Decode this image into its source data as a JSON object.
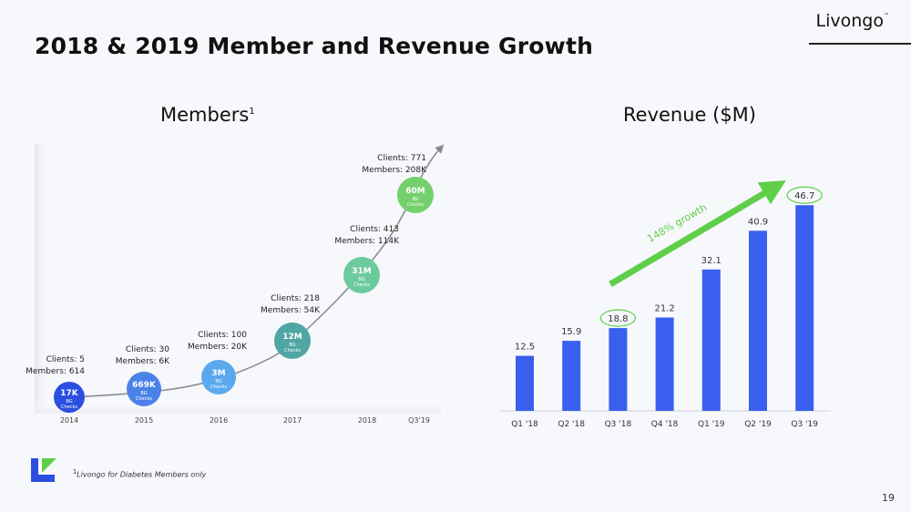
{
  "slide": {
    "title": "2018 & 2019 Member and Revenue Growth",
    "brand": "Livongo",
    "brand_tm": "™",
    "footnote_marker": "1",
    "footnote_text": "Livongo for Diabetes Members only",
    "page_number": "19",
    "logo_icon": "livongo-logo-icon"
  },
  "colors": {
    "revenue_bar": "#3a5fef",
    "growth_arrow": "#5fcf4a",
    "highlight_ellipse": "#5fcf4a",
    "members_curve": "#8c8c8c",
    "bubble_2014": "#2b4fe0",
    "bubble_2015": "#4a82e8",
    "bubble_2016": "#5aa9ee",
    "bubble_2017": "#4fa6a4",
    "bubble_2018": "#6ccb9c",
    "bubble_q3_19": "#74d06c"
  },
  "chart_data": [
    {
      "type": "scatter",
      "title": "Members",
      "title_superscript": "1",
      "categories": [
        "2014",
        "2015",
        "2016",
        "2017",
        "2018",
        "Q3'19"
      ],
      "series": [
        {
          "points": [
            {
              "x": "2014",
              "bubble_value": "17K",
              "bubble_sub": [
                "BG",
                "Checks"
              ],
              "clients": "Clients: 5",
              "members": "Members: 614"
            },
            {
              "x": "2015",
              "bubble_value": "669K",
              "bubble_sub": [
                "BG",
                "Checks"
              ],
              "clients": "Clients: 30",
              "members": "Members: 6K"
            },
            {
              "x": "2016",
              "bubble_value": "3M",
              "bubble_sub": [
                "BG",
                "Checks"
              ],
              "clients": "Clients: 100",
              "members": "Members: 20K"
            },
            {
              "x": "2017",
              "bubble_value": "12M",
              "bubble_sub": [
                "BG",
                "Checks"
              ],
              "clients": "Clients: 218",
              "members": "Members: 54K"
            },
            {
              "x": "2018",
              "bubble_value": "31M",
              "bubble_sub": [
                "BG",
                "Checks"
              ],
              "clients": "Clients: 413",
              "members": "Members: 114K"
            },
            {
              "x": "Q3'19",
              "bubble_value": "60M",
              "bubble_sub": [
                "BG",
                "Checks"
              ],
              "clients": "Clients: 771",
              "members": "Members: 208K"
            }
          ]
        }
      ],
      "members_values": [
        614,
        6000,
        20000,
        54000,
        114000,
        208000
      ],
      "clients_values": [
        5,
        30,
        100,
        218,
        413,
        771
      ],
      "bg_checks_millions": [
        0.017,
        0.669,
        3,
        12,
        31,
        60
      ],
      "grid": false,
      "legend": "none"
    },
    {
      "type": "bar",
      "title": "Revenue ($M)",
      "categories": [
        "Q1 '18",
        "Q2 '18",
        "Q3 '18",
        "Q4 '18",
        "Q1 '19",
        "Q2 '19",
        "Q3 '19"
      ],
      "values": [
        12.5,
        15.9,
        18.8,
        21.2,
        32.1,
        40.9,
        46.7
      ],
      "data_labels": [
        "12.5",
        "15.9",
        "18.8",
        "21.2",
        "32.1",
        "40.9",
        "46.7"
      ],
      "highlighted": [
        "Q3 '18",
        "Q3 '19"
      ],
      "annotation": "148% growth",
      "ylim": [
        0,
        50
      ],
      "grid": false,
      "legend": "none"
    }
  ]
}
